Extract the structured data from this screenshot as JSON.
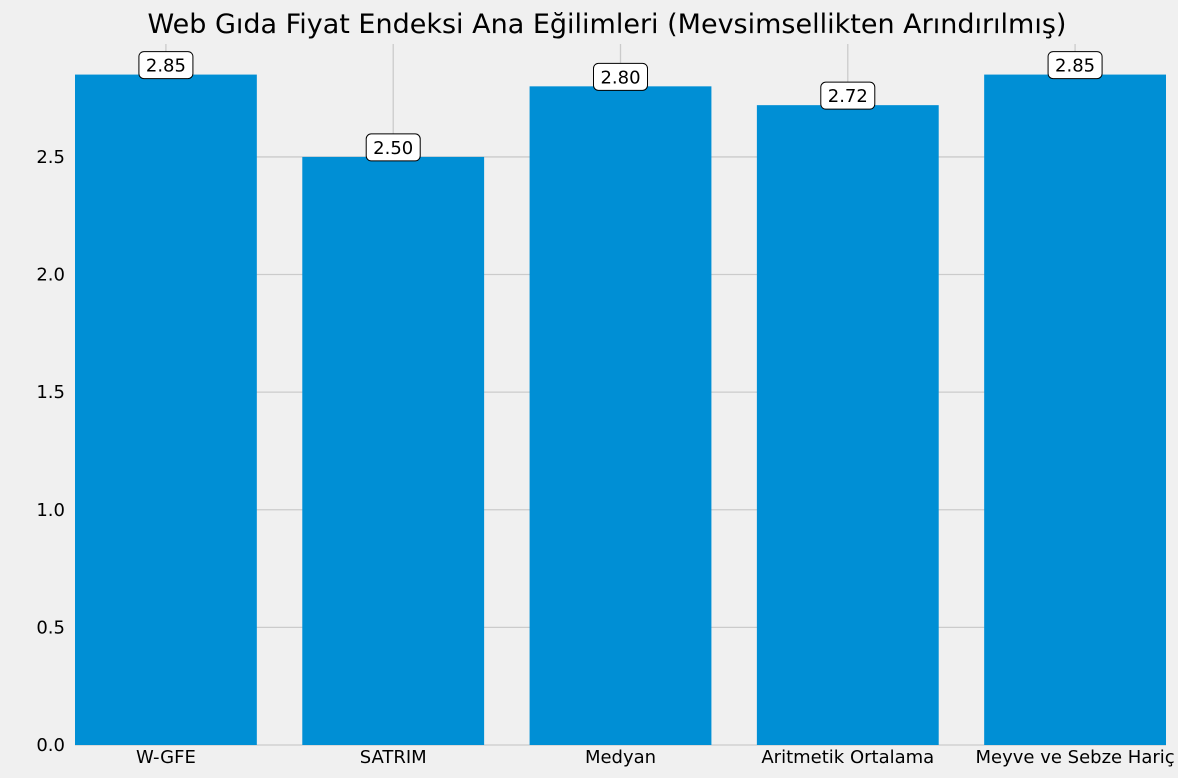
{
  "chart_data": {
    "type": "bar",
    "title": "Web Gıda Fiyat Endeksi Ana Eğilimleri (Mevsimsellikten Arındırılmış)",
    "xlabel": "",
    "ylabel": "",
    "categories": [
      "W-GFE",
      "SATRIM",
      "Medyan",
      "Aritmetik Ortalama",
      "Meyve ve Sebze Hariç"
    ],
    "values": [
      2.85,
      2.5,
      2.8,
      2.72,
      2.85
    ],
    "value_labels": [
      "2.85",
      "2.50",
      "2.80",
      "2.72",
      "2.85"
    ],
    "ylim": [
      0,
      2.98
    ],
    "yticks": [
      0.0,
      0.5,
      1.0,
      1.5,
      2.0,
      2.5
    ],
    "ytick_labels": [
      "0.0",
      "0.5",
      "1.0",
      "1.5",
      "2.0",
      "2.5"
    ],
    "grid": true,
    "bar_color": "#008fd5",
    "background_color": "#f0f0f0"
  }
}
